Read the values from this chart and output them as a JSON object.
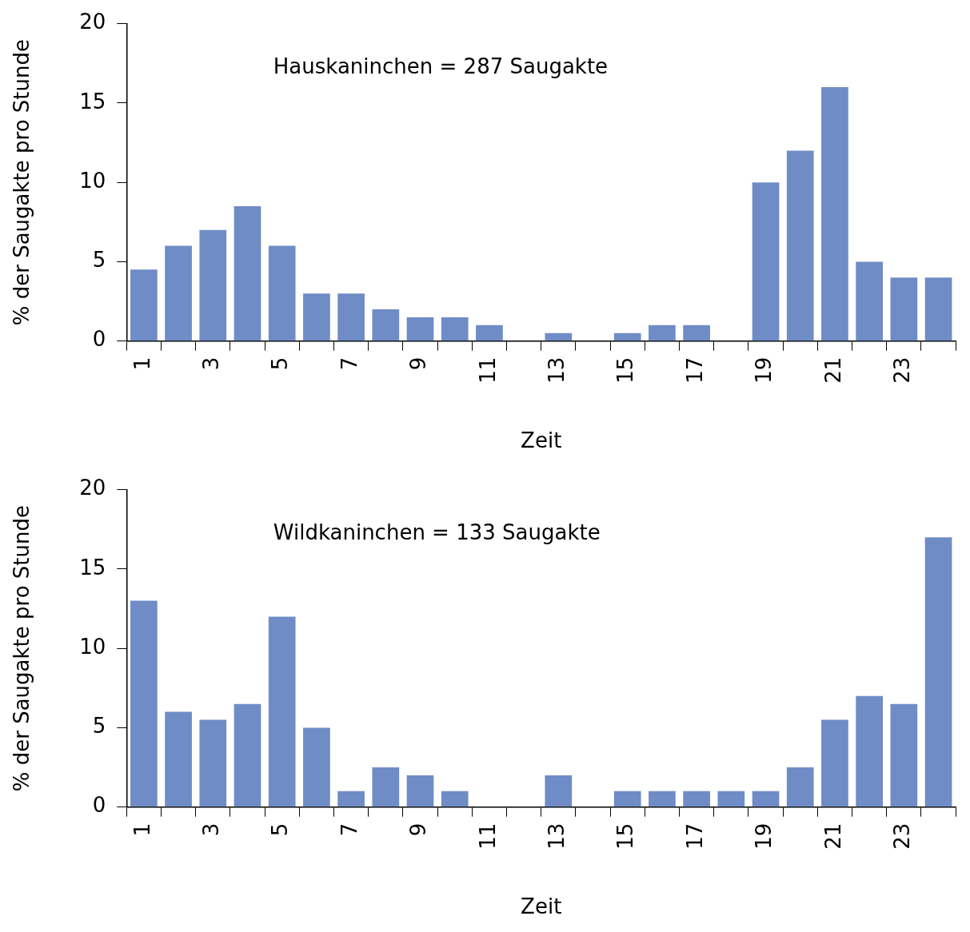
{
  "chart_data": [
    {
      "type": "bar",
      "xlabel": "Zeit",
      "ylabel": "% der Saugakte pro Stunde",
      "annotations": [
        "Hauskaninchen = 287 Saugakte"
      ],
      "categories": [
        "1",
        null,
        "3",
        null,
        "5",
        null,
        "7",
        null,
        "9",
        null,
        "11",
        null,
        "13",
        null,
        "15",
        null,
        "17",
        null,
        "19",
        null,
        "21",
        null,
        "23",
        null
      ],
      "values": [
        4.5,
        6,
        7,
        8.5,
        6,
        3,
        3,
        2,
        1.5,
        1.5,
        1,
        0,
        0.5,
        0,
        0.5,
        1,
        1,
        0,
        10,
        12,
        16,
        5,
        4,
        4
      ],
      "color": "#6f8cc6",
      "ylim": [
        0,
        20
      ],
      "yticks": [
        0,
        5,
        10,
        15,
        20
      ]
    },
    {
      "type": "bar",
      "xlabel": "Zeit",
      "ylabel": "% der Saugakte pro Stunde",
      "annotations": [
        "Wildkaninchen = 133 Saugakte"
      ],
      "categories": [
        "1",
        null,
        "3",
        null,
        "5",
        null,
        "7",
        null,
        "9",
        null,
        "11",
        null,
        "13",
        null,
        "15",
        null,
        "17",
        null,
        "19",
        null,
        "21",
        null,
        "23",
        null
      ],
      "values": [
        13,
        6,
        5.5,
        6.5,
        12,
        5,
        1,
        2.5,
        2,
        1,
        0,
        0,
        2,
        0,
        1,
        1,
        1,
        1,
        1,
        2.5,
        5.5,
        7,
        6.5,
        17
      ],
      "color": "#6f8cc6",
      "ylim": [
        0,
        20
      ],
      "yticks": [
        0,
        5,
        10,
        15,
        20
      ]
    }
  ]
}
